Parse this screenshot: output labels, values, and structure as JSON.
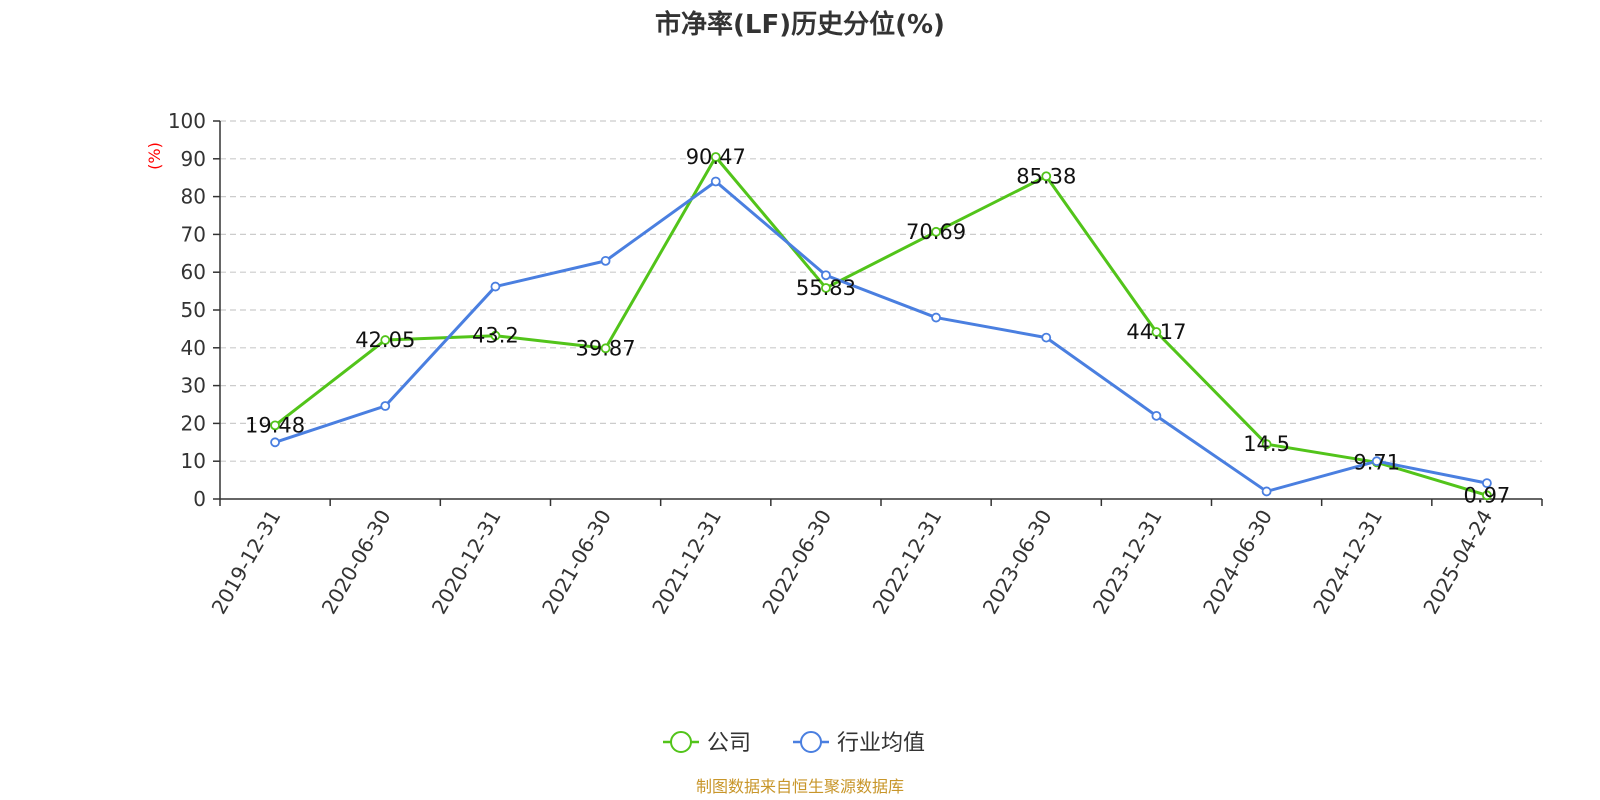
{
  "chart_data": {
    "type": "line",
    "title": "市净率(LF)历史分位(%)",
    "ylabel": "(%)",
    "xlabel": "",
    "ylim": [
      0,
      100
    ],
    "yticks": [
      0,
      10,
      20,
      30,
      40,
      50,
      60,
      70,
      80,
      90,
      100
    ],
    "grid": true,
    "legend_position": "bottom-center",
    "categories": [
      "2019-12-31",
      "2020-06-30",
      "2020-12-31",
      "2021-06-30",
      "2021-12-31",
      "2022-06-30",
      "2022-12-31",
      "2023-06-30",
      "2023-12-31",
      "2024-06-30",
      "2024-12-31",
      "2025-04-24"
    ],
    "series": [
      {
        "name": "公司",
        "color": "#52c41a",
        "values": [
          19.48,
          42.05,
          43.2,
          39.87,
          90.47,
          55.83,
          70.69,
          85.38,
          44.17,
          14.5,
          9.71,
          0.97
        ],
        "data_labels": [
          "19.48",
          "42.05",
          "43.2",
          "39.87",
          "90.47",
          "55.83",
          "70.69",
          "85.38",
          "44.17",
          "14.5",
          "9.71",
          "0.97"
        ]
      },
      {
        "name": "行业均值",
        "color": "#4a7fe0",
        "values": [
          15,
          24.6,
          56.2,
          63,
          84,
          59.2,
          48,
          42.7,
          22,
          2,
          10,
          4.2
        ]
      }
    ]
  },
  "source_text": "制图数据来自恒生聚源数据库",
  "colors": {
    "axis": "#333333",
    "grid": "#cccccc",
    "ylabel": "#ff0000",
    "source": "#c8962a"
  }
}
